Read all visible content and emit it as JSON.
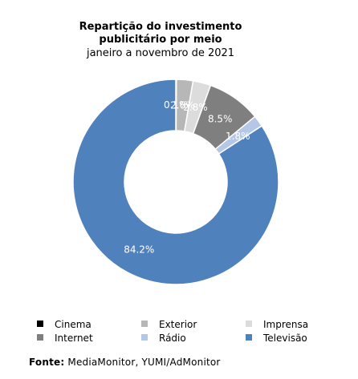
{
  "chart_data": {
    "type": "pie",
    "donut": true,
    "title": "Repartição do investimento publicitário por meio",
    "title_lines": [
      "Repartição do investimento",
      "publicitário por meio"
    ],
    "subtitle": "janeiro a novembro de 2021",
    "slices": [
      {
        "label": "Cinema",
        "value": 0.1,
        "display": "0.1%",
        "color": "#000000"
      },
      {
        "label": "Exterior",
        "value": 2.6,
        "display": "2.6%",
        "color": "#b7b7b7"
      },
      {
        "label": "Imprensa",
        "value": 2.8,
        "display": "2.8%",
        "color": "#dcdcdc"
      },
      {
        "label": "Internet",
        "value": 8.5,
        "display": "8.5%",
        "color": "#7f7f7f"
      },
      {
        "label": "Rádio",
        "value": 1.8,
        "display": "1.8%",
        "color": "#b4c7e7"
      },
      {
        "label": "Televisão",
        "value": 84.2,
        "display": "84.2%",
        "color": "#4f81bd"
      }
    ],
    "legend_position": "bottom"
  },
  "source": {
    "label": "Fonte:",
    "text": "MediaMonitor, YUMI/AdMonitor"
  }
}
